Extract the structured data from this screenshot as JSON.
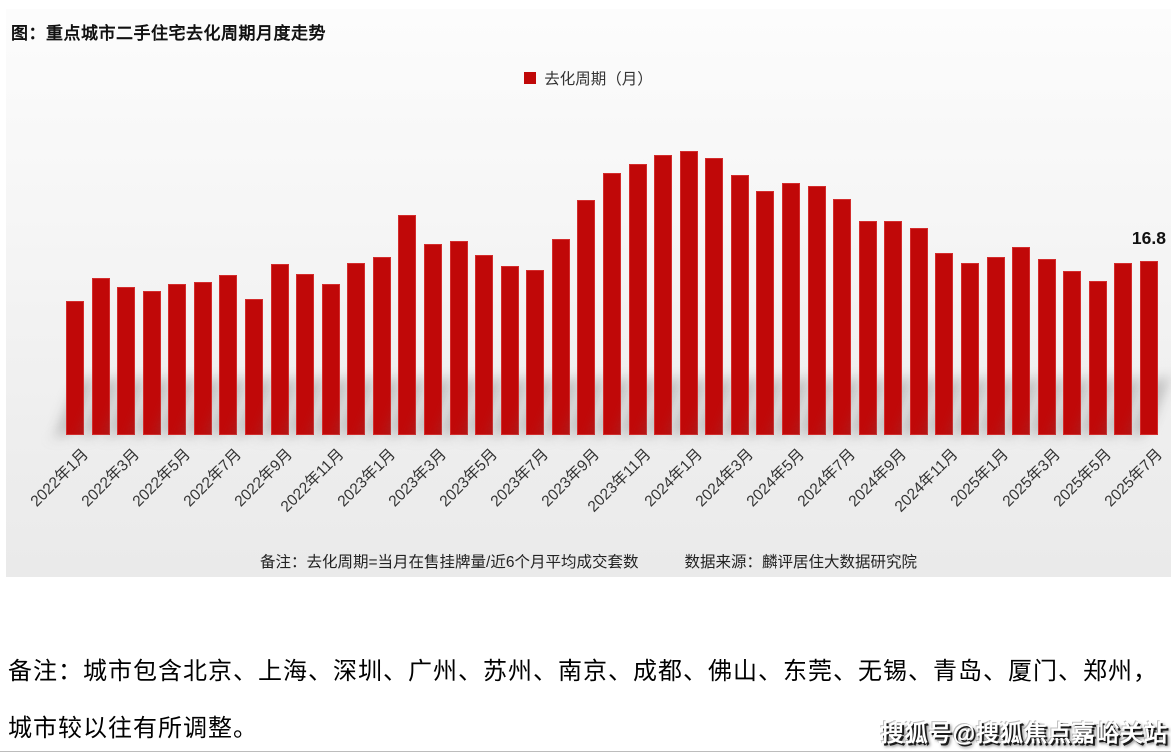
{
  "title": "图：重点城市二手住宅去化周期月度走势",
  "legend": {
    "label": "去化周期（月）"
  },
  "colors": {
    "bar": "#c00808",
    "panel_top": "#fcfcfc",
    "panel_bottom": "#eaeaea",
    "text": "#111111"
  },
  "chart_data": {
    "type": "bar",
    "title": "重点城市二手住宅去化周期月度走势",
    "xlabel": "",
    "ylabel": "去化周期（月）",
    "legend_position": "top-center",
    "grid": false,
    "ylim": [
      0,
      28.5
    ],
    "xtick_step": 2,
    "x": [
      "2022年1月",
      "2022年2月",
      "2022年3月",
      "2022年4月",
      "2022年5月",
      "2022年6月",
      "2022年7月",
      "2022年8月",
      "2022年9月",
      "2022年10月",
      "2022年11月",
      "2022年12月",
      "2023年1月",
      "2023年2月",
      "2023年3月",
      "2023年4月",
      "2023年5月",
      "2023年6月",
      "2023年7月",
      "2023年8月",
      "2023年9月",
      "2023年10月",
      "2023年11月",
      "2023年12月",
      "2024年1月",
      "2024年2月",
      "2024年3月",
      "2024年4月",
      "2024年5月",
      "2024年6月",
      "2024年7月",
      "2024年8月",
      "2024年9月",
      "2024年10月",
      "2024年11月",
      "2024年12月",
      "2025年1月",
      "2025年2月",
      "2025年3月",
      "2025年4月",
      "2025年5月",
      "2025年6月",
      "2025年7月"
    ],
    "values": [
      12.9,
      15.1,
      14.3,
      13.9,
      14.6,
      14.8,
      15.4,
      13.1,
      16.5,
      15.5,
      14.6,
      16.6,
      17.2,
      21.2,
      18.4,
      18.7,
      17.4,
      16.3,
      15.9,
      18.9,
      22.7,
      25.3,
      26.1,
      27.0,
      27.4,
      26.7,
      25.1,
      23.5,
      24.3,
      24.0,
      22.8,
      20.6,
      20.6,
      20.0,
      17.6,
      16.6,
      17.2,
      18.1,
      17.0,
      15.8,
      14.9,
      16.6,
      16.8
    ],
    "annotation": {
      "index": 42,
      "label": "16.8"
    }
  },
  "notes": {
    "formula": "备注：去化周期=当月在售挂牌量/近6个月平均成交套数",
    "source": "数据来源：麟评居住大数据研究院"
  },
  "footer": {
    "line1": "备注：城市包含北京、上海、深圳、广州、苏州、南京、成都、佛山、东莞、无锡、青岛、厦门、郑州，",
    "line2": "城市较以往有所调整。"
  },
  "watermark": "搜狐号@搜狐焦点嘉峪关站"
}
